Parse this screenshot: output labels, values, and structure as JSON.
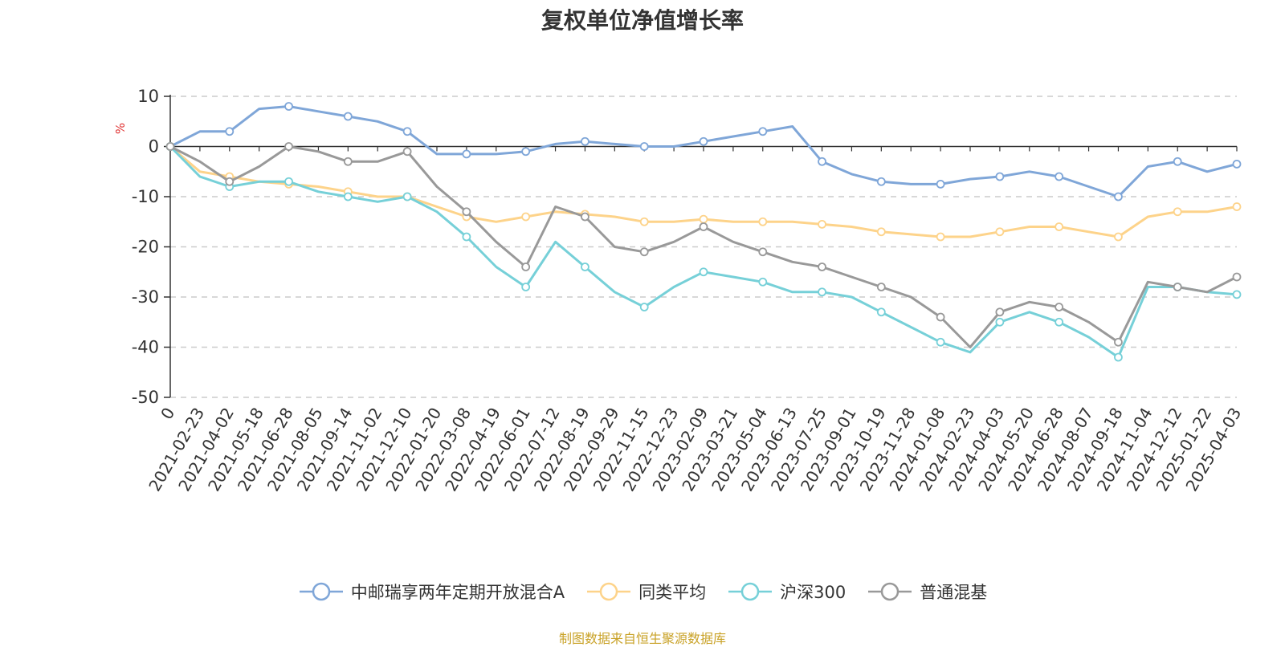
{
  "chart_data": {
    "type": "line",
    "title": "复权单位净值增长率",
    "ylabel": "%",
    "ylim": [
      -50,
      10
    ],
    "yticks": [
      10,
      0,
      -10,
      -20,
      -30,
      -40,
      -50
    ],
    "grid": true,
    "legend_position": "bottom",
    "categories": [
      "0",
      "2021-02-23",
      "2021-04-02",
      "2021-05-18",
      "2021-06-28",
      "2021-08-05",
      "2021-09-14",
      "2021-11-02",
      "2021-12-10",
      "2022-01-20",
      "2022-03-08",
      "2022-04-19",
      "2022-06-01",
      "2022-07-12",
      "2022-08-19",
      "2022-09-29",
      "2022-11-15",
      "2022-12-23",
      "2023-02-09",
      "2023-03-21",
      "2023-05-04",
      "2023-06-13",
      "2023-07-25",
      "2023-09-01",
      "2023-10-19",
      "2023-11-28",
      "2024-01-08",
      "2024-02-23",
      "2024-04-03",
      "2024-05-20",
      "2024-06-28",
      "2024-08-07",
      "2024-09-18",
      "2024-11-04",
      "2024-12-12",
      "2025-01-22",
      "2025-04-03"
    ],
    "series": [
      {
        "name": "中邮瑞享两年定期开放混合A",
        "color": "#7fa6d8",
        "values": [
          0,
          3,
          3,
          7.5,
          8,
          7,
          6,
          5,
          3,
          -1.5,
          -1.5,
          -1.5,
          -1,
          0.5,
          1,
          0.5,
          0,
          0,
          1,
          2,
          3,
          4,
          -3,
          -5.5,
          -7,
          -7.5,
          -7.5,
          -6.5,
          -6,
          -5,
          -6,
          -8,
          -10,
          -4,
          -3,
          -5,
          -3.5
        ]
      },
      {
        "name": "同类平均",
        "color": "#fdd38a",
        "values": [
          0,
          -5,
          -6,
          -7,
          -7.5,
          -8,
          -9,
          -10,
          -10,
          -12,
          -14,
          -15,
          -14,
          -13,
          -13.5,
          -14,
          -15,
          -15,
          -14.5,
          -15,
          -15,
          -15,
          -15.5,
          -16,
          -17,
          -17.5,
          -18,
          -18,
          -17,
          -16,
          -16,
          -17,
          -18,
          -14,
          -13,
          -13,
          -12
        ]
      },
      {
        "name": "沪深300",
        "color": "#76d0d8",
        "values": [
          0,
          -6,
          -8,
          -7,
          -7,
          -9,
          -10,
          -11,
          -10,
          -13,
          -18,
          -24,
          -28,
          -19,
          -24,
          -29,
          -32,
          -28,
          -25,
          -26,
          -27,
          -29,
          -29,
          -30,
          -33,
          -36,
          -39,
          -41,
          -35,
          -33,
          -35,
          -38,
          -42,
          -28,
          -28,
          -29,
          -29.5
        ]
      },
      {
        "name": "普通混基",
        "color": "#999999",
        "values": [
          0,
          -3,
          -7,
          -4,
          0,
          -1,
          -3,
          -3,
          -1,
          -8,
          -13,
          -19,
          -24,
          -12,
          -14,
          -20,
          -21,
          -19,
          -16,
          -19,
          -21,
          -23,
          -24,
          -26,
          -28,
          -30,
          -34,
          -40,
          -33,
          -31,
          -32,
          -35,
          -39,
          -27,
          -28,
          -29,
          -26
        ]
      }
    ]
  },
  "source_note": "制图数据来自恒生聚源数据库"
}
